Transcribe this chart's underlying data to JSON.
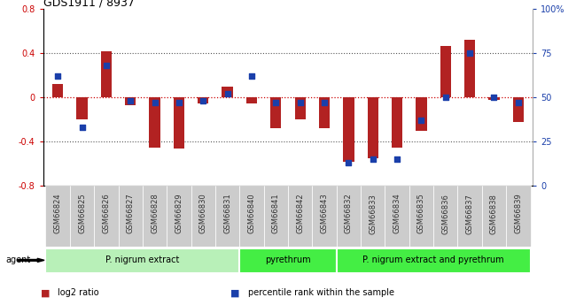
{
  "title": "GDS1911 / 8937",
  "samples": [
    "GSM66824",
    "GSM66825",
    "GSM66826",
    "GSM66827",
    "GSM66828",
    "GSM66829",
    "GSM66830",
    "GSM66831",
    "GSM66840",
    "GSM66841",
    "GSM66842",
    "GSM66843",
    "GSM66832",
    "GSM66833",
    "GSM66834",
    "GSM66835",
    "GSM66836",
    "GSM66837",
    "GSM66838",
    "GSM66839"
  ],
  "log2_ratio": [
    0.12,
    -0.2,
    0.42,
    -0.07,
    -0.45,
    -0.46,
    -0.05,
    0.1,
    -0.05,
    -0.28,
    -0.2,
    -0.28,
    -0.58,
    -0.55,
    -0.45,
    -0.3,
    0.47,
    0.52,
    -0.02,
    -0.22
  ],
  "percentile_rank": [
    62,
    33,
    68,
    48,
    47,
    47,
    48,
    52,
    62,
    47,
    47,
    47,
    13,
    15,
    15,
    37,
    50,
    75,
    50,
    47
  ],
  "bar_color": "#b22222",
  "dot_color": "#1a3faa",
  "ylim_left": [
    -0.8,
    0.8
  ],
  "ylim_right": [
    0,
    100
  ],
  "yticks_left": [
    -0.8,
    -0.4,
    0.0,
    0.4,
    0.8
  ],
  "yticks_right": [
    0,
    25,
    50,
    75,
    100
  ],
  "ytick_labels_right": [
    "0",
    "25",
    "50",
    "75",
    "100%"
  ],
  "hline_color": "#cc0000",
  "dotted_line_color": "#555555",
  "groups": [
    {
      "label": "P. nigrum extract",
      "start": 0,
      "end": 7,
      "color": "#b8f0b8"
    },
    {
      "label": "pyrethrum",
      "start": 8,
      "end": 11,
      "color": "#44ee44"
    },
    {
      "label": "P. nigrum extract and pyrethrum",
      "start": 12,
      "end": 19,
      "color": "#44ee44"
    }
  ],
  "agent_label": "agent",
  "legend_items": [
    {
      "color": "#b22222",
      "label": "log2 ratio"
    },
    {
      "color": "#1a3faa",
      "label": "percentile rank within the sample"
    }
  ],
  "bar_width": 0.45
}
